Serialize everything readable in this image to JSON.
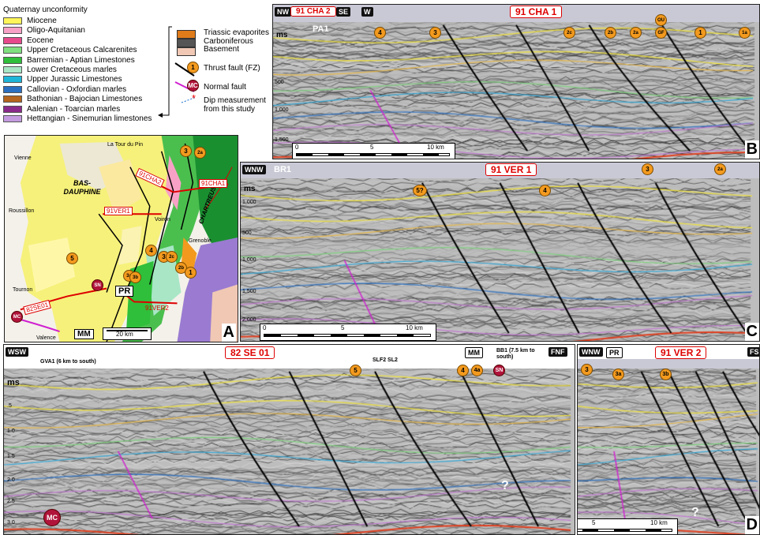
{
  "legend": {
    "title": "Quaternay unconformity",
    "units": [
      {
        "label": "Miocene",
        "color": "#fff55a"
      },
      {
        "label": "Oligo-Aquitanian",
        "color": "#f7a1c6"
      },
      {
        "label": "Eocene",
        "color": "#e64a8c"
      },
      {
        "label": "Upper Cretaceous Calcarenites",
        "color": "#7fe07f"
      },
      {
        "label": "Barremian - Aptian Limestones",
        "color": "#2fbf3a"
      },
      {
        "label": "Lower Cretaceous marles",
        "color": "#a8e6c6"
      },
      {
        "label": "Upper Jurassic Limestones",
        "color": "#1fb5d9"
      },
      {
        "label": "Callovian - Oxfordian marles",
        "color": "#2a6fc0"
      },
      {
        "label": "Bathonian - Bajocian Limestones",
        "color": "#b5651d"
      },
      {
        "label": "Aalenian - Toarcian marles",
        "color": "#8a2a8a"
      },
      {
        "label": "Hettangian - Sinemurian limestones",
        "color": "#c59be0"
      }
    ],
    "right": {
      "triassic": "Triassic evaporites",
      "carboniferous": "Carboniferous",
      "basement": "Basement",
      "thrust": "Thrust fault (FZ)",
      "thrust_num": "1",
      "normal": "Normal fault",
      "normal_abbr": "MC",
      "dip": "Dip measurement from this study"
    },
    "colors": {
      "triassic": "#e07b1a",
      "carboniferous": "#555555",
      "basement": "#f0c8b4"
    }
  },
  "map": {
    "label": "A",
    "towns": [
      "La Tour du Pin",
      "Vienne",
      "Roussillon",
      "Tournon",
      "Valence",
      "Grenoble",
      "Voiron"
    ],
    "regions": [
      "BAS-DAUPHINE",
      "CHARTREUSE"
    ],
    "lines": [
      "91CHA2",
      "91CHA1",
      "91VER1",
      "82SE01",
      "91VER2"
    ],
    "marks": [
      "PR",
      "MM"
    ],
    "circles": [
      "3",
      "2a",
      "2b",
      "4",
      "3",
      "2c",
      "1",
      "5",
      "3a",
      "3b",
      "SN",
      "MC"
    ],
    "scale": "20 km"
  },
  "panelB": {
    "label": "B",
    "tags": [
      "NW",
      "SE",
      "W"
    ],
    "title2": "91 CHA 2",
    "title1": "91 CHA 1",
    "well": "PA1",
    "ms": "ms",
    "ticks": [
      "500",
      "1,000",
      "1,500"
    ],
    "circles": [
      "4",
      "3",
      "2c",
      "2b",
      "2a",
      "OU",
      "GF",
      "1",
      "1a"
    ],
    "scale_start": "0",
    "scale_mid": "5",
    "scale_end": "10 km"
  },
  "panelC": {
    "label": "C",
    "tag": "WNW",
    "title": "91 VER 1",
    "well": "BR1",
    "ms": "ms",
    "ticks": [
      "1,000",
      "500",
      "1,000",
      "1,500",
      "2,000"
    ],
    "circles": [
      "5?",
      "4",
      "3",
      "2a"
    ],
    "scale_start": "0",
    "scale_mid": "5",
    "scale_end": "10 km"
  },
  "panelSE": {
    "tag": "WSW",
    "title": "82 SE 01",
    "mm": "MM",
    "fnf": "FNF",
    "bb1": "BB1 (7.5 km to south)",
    "gva1": "GVA1 (6 km to south)",
    "wells": "SLF2 SL2",
    "ms": "ms",
    "ticks": [
      ".5",
      "1.0",
      "1.5",
      "2.0",
      "2.5",
      "3.0"
    ],
    "circles": [
      "5",
      "4",
      "4a",
      "SN"
    ],
    "mc": "MC",
    "q": "?"
  },
  "panelD": {
    "label": "D",
    "tag": "WNW",
    "pr": "PR",
    "title": "91 VER 2",
    "fs": "FS",
    "circles": [
      "3",
      "3a",
      "3b"
    ],
    "scale_start": "0",
    "scale_mid": "5",
    "scale_end": "10 km",
    "q": "?"
  }
}
